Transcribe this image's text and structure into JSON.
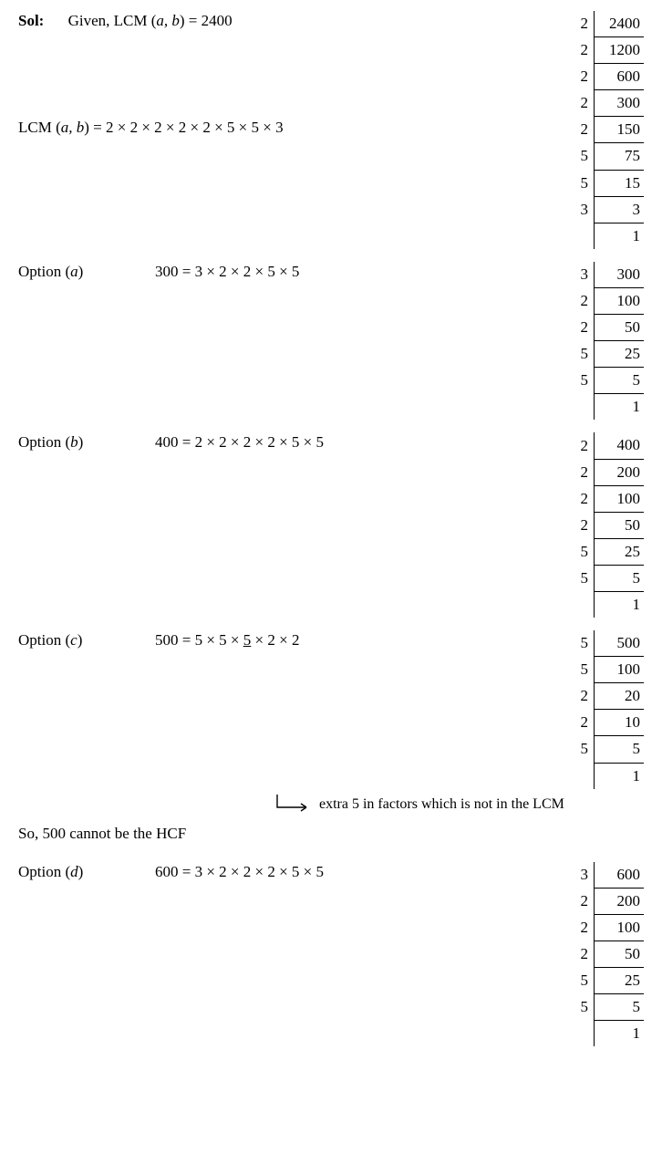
{
  "sol": {
    "label": "Sol:",
    "given_pre": "Given, LCM (",
    "given_ab": "a, b",
    "given_post": ") = 2400"
  },
  "lcm_line": {
    "pre": "LCM (",
    "ab": "a, b",
    "post": ") = 2 × 2 × 2 × 2 × 2 × 5 × 5 × 3"
  },
  "ladder_2400": {
    "d": [
      "2",
      "2",
      "2",
      "2",
      "2",
      "5",
      "5",
      "3",
      ""
    ],
    "n": [
      "2400",
      "1200",
      "600",
      "300",
      "150",
      "75",
      "15",
      "3",
      "1"
    ]
  },
  "opt_a": {
    "label_pre": "Option (",
    "label_i": "a",
    "label_post": ")",
    "expr": "300  = 3 × 2 × 2 × 5 × 5",
    "ladder": {
      "d": [
        "3",
        "2",
        "2",
        "5",
        "5",
        ""
      ],
      "n": [
        "300",
        "100",
        "50",
        "25",
        "5",
        "1"
      ]
    }
  },
  "opt_b": {
    "label_pre": "Option (",
    "label_i": "b",
    "label_post": ")",
    "expr": "400  = 2 × 2 × 2 × 2 × 5 × 5",
    "ladder": {
      "d": [
        "2",
        "2",
        "2",
        "2",
        "5",
        "5",
        ""
      ],
      "n": [
        "400",
        "200",
        "100",
        "50",
        "25",
        "5",
        "1"
      ]
    }
  },
  "opt_c": {
    "label_pre": "Option (",
    "label_i": "c",
    "label_post": ")",
    "expr_pre": "500  = 5 × 5 × ",
    "expr_u": "5",
    "expr_post": " × 2 × 2",
    "ladder": {
      "d": [
        "5",
        "5",
        "2",
        "2",
        "5",
        ""
      ],
      "n": [
        "500",
        "100",
        "20",
        "10",
        "5",
        "1"
      ]
    },
    "arrow_text": "extra 5 in factors which is not in the LCM",
    "hcf_text": "So, 500 cannot be the HCF"
  },
  "opt_d": {
    "label_pre": "Option (",
    "label_i": "d",
    "label_post": ")",
    "expr": "600 = 3 × 2 × 2 × 2 × 5 × 5",
    "ladder": {
      "d": [
        "3",
        "2",
        "2",
        "2",
        "5",
        "5",
        ""
      ],
      "n": [
        "600",
        "200",
        "100",
        "50",
        "25",
        "5",
        "1"
      ]
    }
  }
}
